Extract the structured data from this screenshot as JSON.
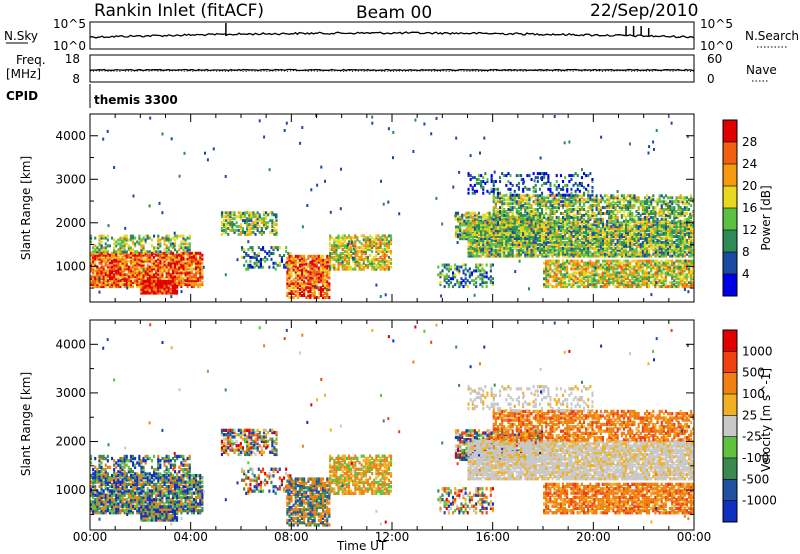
{
  "header": {
    "station": "Rankin Inlet (fitACF)",
    "beam": "Beam 00",
    "date": "22/Sep/2010"
  },
  "panel_labels": {
    "nsky": "N.Sky",
    "nsky_axis": [
      "10^5",
      "10^0"
    ],
    "nsearch": "N.Search",
    "nsearch_axis": [
      "10^5",
      "10^0"
    ],
    "freq": "Freq.",
    "freq_unit": "[MHz]",
    "freq_axis": [
      "18",
      "8"
    ],
    "nave": "Nave",
    "nave_axis": [
      "60",
      "0"
    ],
    "cpid": "CPID",
    "cpid_value": "themis 3300"
  },
  "colors": {
    "power": [
      "#0000e8",
      "#1a4aa0",
      "#2e8b57",
      "#5cc040",
      "#e8d820",
      "#f59a10",
      "#f06010",
      "#e00000"
    ],
    "velocity": [
      "#1030c0",
      "#2050a0",
      "#3a8a50",
      "#60c040",
      "#c8c8c8",
      "#f0b020",
      "#f08010",
      "#f04010",
      "#e00000"
    ]
  },
  "chart_data": [
    {
      "type": "heatmap",
      "title": "Power",
      "xlabel": "",
      "ylabel": "Slant Range [km]",
      "colorbar_label": "Power [dB]",
      "colorbar_ticks": [
        "28",
        "24",
        "20",
        "16",
        "12",
        "8",
        "4"
      ],
      "x_ticks": [
        "00:00",
        "04:00",
        "08:00",
        "12:00",
        "16:00",
        "20:00",
        "00:00"
      ],
      "xlim": [
        0,
        24
      ],
      "ylim": [
        180,
        4500
      ],
      "y_ticks": [
        1000,
        2000,
        3000,
        4000
      ]
    },
    {
      "type": "heatmap",
      "title": "Velocity",
      "xlabel": "Time UT",
      "ylabel": "Slant Range [km]",
      "colorbar_label": "Velocity [m s^-1]",
      "colorbar_ticks": [
        "1000",
        "500",
        "100",
        "25",
        "-25",
        "-100",
        "-500",
        "-1000"
      ],
      "x_ticks": [
        "00:00",
        "04:00",
        "08:00",
        "12:00",
        "16:00",
        "20:00",
        "00:00"
      ],
      "xlim": [
        0,
        24
      ],
      "ylim": [
        180,
        4500
      ],
      "y_ticks": [
        1000,
        2000,
        3000,
        4000
      ]
    }
  ]
}
